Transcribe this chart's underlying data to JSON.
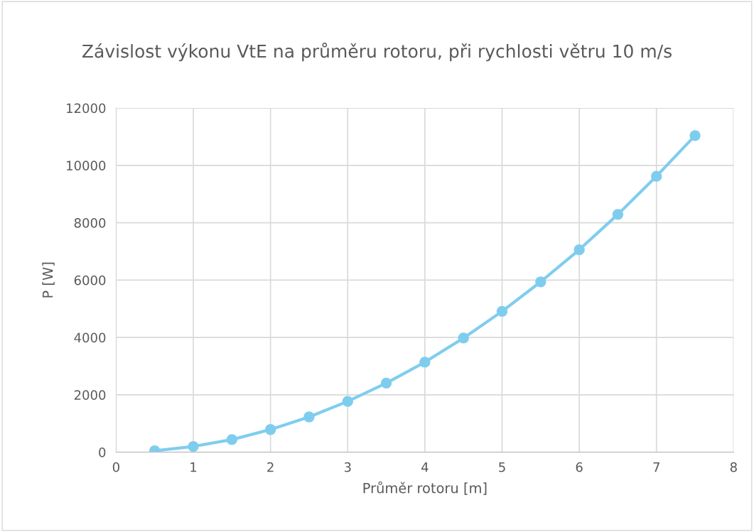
{
  "chart_data": {
    "type": "line",
    "title": "Závislost výkonu VtE na průměru rotoru, při rychlosti větru 10 m/s",
    "xlabel": "Průměr rotoru [m]",
    "ylabel": "P [W]",
    "x": [
      0.5,
      1,
      1.5,
      2,
      2.5,
      3,
      3.5,
      4,
      4.5,
      5,
      5.5,
      6,
      6.5,
      7,
      7.5
    ],
    "series": [
      {
        "color": "#7fcdee",
        "values": [
          50,
          200,
          440,
          790,
          1230,
          1770,
          2410,
          3140,
          3980,
          4910,
          5940,
          7060,
          8290,
          9620,
          11040
        ]
      }
    ],
    "xlim": [
      0,
      8
    ],
    "xticks": [
      0,
      1,
      2,
      3,
      4,
      5,
      6,
      7,
      8
    ],
    "ylim": [
      0,
      12000
    ],
    "yticks": [
      0,
      2000,
      4000,
      6000,
      8000,
      10000,
      12000
    ],
    "grid": true,
    "marker": "circle",
    "line_style": "solid"
  }
}
